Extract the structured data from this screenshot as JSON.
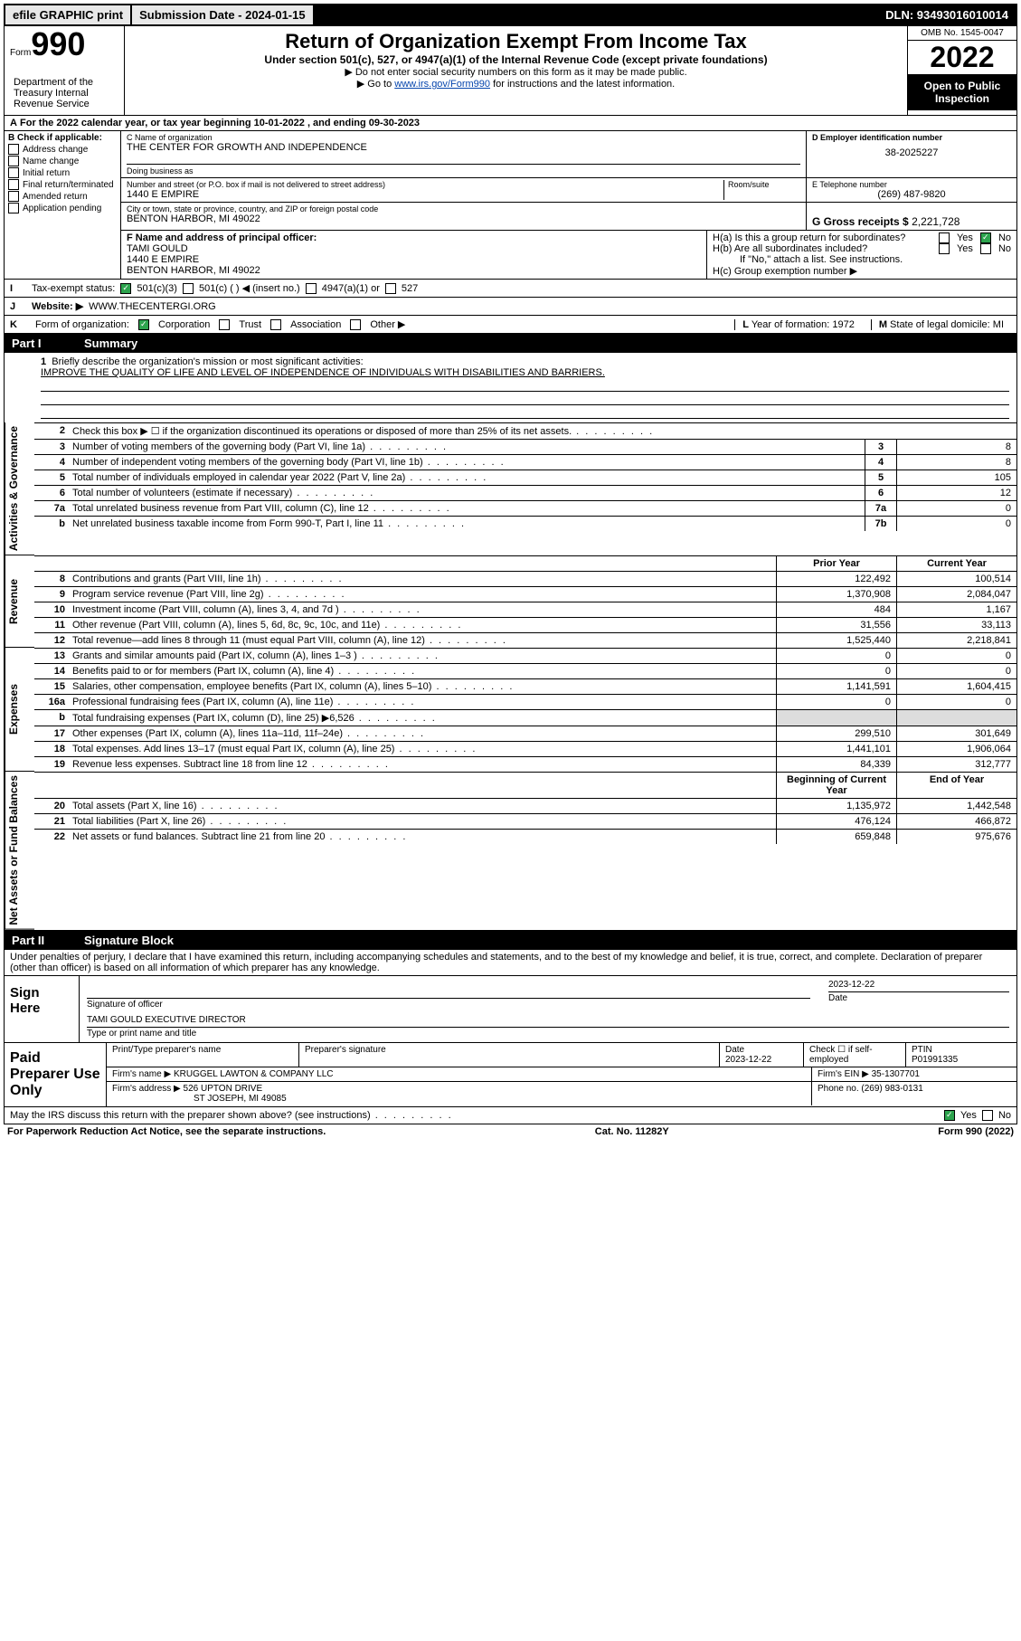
{
  "top": {
    "efile": "efile GRAPHIC print",
    "submission": "Submission Date - 2024-01-15",
    "dln": "DLN: 93493016010014"
  },
  "header": {
    "form_prefix": "Form",
    "form_number": "990",
    "title": "Return of Organization Exempt From Income Tax",
    "subtitle": "Under section 501(c), 527, or 4947(a)(1) of the Internal Revenue Code (except private foundations)",
    "note1": "▶ Do not enter social security numbers on this form as it may be made public.",
    "note2_pre": "▶ Go to ",
    "note2_link": "www.irs.gov/Form990",
    "note2_post": " for instructions and the latest information.",
    "omb": "OMB No. 1545-0047",
    "year": "2022",
    "inspection": "Open to Public Inspection",
    "dept": "Department of the Treasury Internal Revenue Service"
  },
  "period": "For the 2022 calendar year, or tax year beginning 10-01-2022   , and ending 09-30-2023",
  "b": {
    "header": "B Check if applicable:",
    "opts": [
      "Address change",
      "Name change",
      "Initial return",
      "Final return/terminated",
      "Amended return",
      "Application pending"
    ]
  },
  "c": {
    "name_label": "C Name of organization",
    "name": "THE CENTER FOR GROWTH AND INDEPENDENCE",
    "dba_label": "Doing business as",
    "street_label": "Number and street (or P.O. box if mail is not delivered to street address)",
    "suite_label": "Room/suite",
    "street": "1440 E EMPIRE",
    "city_label": "City or town, state or province, country, and ZIP or foreign postal code",
    "city": "BENTON HARBOR, MI  49022"
  },
  "d": {
    "label": "D Employer identification number",
    "ein": "38-2025227"
  },
  "e": {
    "label": "E Telephone number",
    "phone": "(269) 487-9820"
  },
  "g": {
    "label": "G Gross receipts $",
    "amount": "2,221,728"
  },
  "f": {
    "label": "F  Name and address of principal officer:",
    "name": "TAMI GOULD",
    "street": "1440 E EMPIRE",
    "city": "BENTON HARBOR, MI  49022"
  },
  "h": {
    "a": "H(a)  Is this a group return for subordinates?",
    "b": "H(b)  Are all subordinates included?",
    "note": "If \"No,\" attach a list. See instructions.",
    "c": "H(c)  Group exemption number ▶",
    "yes": "Yes",
    "no": "No"
  },
  "i": {
    "label": "I",
    "text": "Tax-exempt status:",
    "o1": "501(c)(3)",
    "o2": "501(c) (  ) ◀ (insert no.)",
    "o3": "4947(a)(1) or",
    "o4": "527"
  },
  "j": {
    "label": "J",
    "text": "Website: ▶",
    "url": "WWW.THECENTERGI.ORG"
  },
  "k": {
    "label": "K",
    "text": "Form of organization:",
    "o1": "Corporation",
    "o2": "Trust",
    "o3": "Association",
    "o4": "Other ▶"
  },
  "l": {
    "label": "L",
    "text": "Year of formation: 1972"
  },
  "m": {
    "label": "M",
    "text": "State of legal domicile: MI"
  },
  "part1": {
    "name": "Part I",
    "title": "Summary",
    "q1_label": "1",
    "q1": "Briefly describe the organization's mission or most significant activities:",
    "mission": "IMPROVE THE QUALITY OF LIFE AND LEVEL OF INDEPENDENCE OF INDIVIDUALS WITH DISABILITIES AND BARRIERS.",
    "sections": {
      "gov": "Activities & Governance",
      "rev": "Revenue",
      "exp": "Expenses",
      "net": "Net Assets or Fund Balances"
    },
    "rows_gov": [
      {
        "n": "2",
        "d": "Check this box ▶ ☐  if the organization discontinued its operations or disposed of more than 25% of its net assets."
      },
      {
        "n": "3",
        "d": "Number of voting members of the governing body (Part VI, line 1a)",
        "box": "3",
        "v": "8"
      },
      {
        "n": "4",
        "d": "Number of independent voting members of the governing body (Part VI, line 1b)",
        "box": "4",
        "v": "8"
      },
      {
        "n": "5",
        "d": "Total number of individuals employed in calendar year 2022 (Part V, line 2a)",
        "box": "5",
        "v": "105"
      },
      {
        "n": "6",
        "d": "Total number of volunteers (estimate if necessary)",
        "box": "6",
        "v": "12"
      },
      {
        "n": "7a",
        "d": "Total unrelated business revenue from Part VIII, column (C), line 12",
        "box": "7a",
        "v": "0"
      },
      {
        "n": "b",
        "d": "Net unrelated business taxable income from Form 990-T, Part I, line 11",
        "box": "7b",
        "v": "0"
      }
    ],
    "col_prior": "Prior Year",
    "col_current": "Current Year",
    "col_begin": "Beginning of Current Year",
    "col_end": "End of Year",
    "rows_rev": [
      {
        "n": "8",
        "d": "Contributions and grants (Part VIII, line 1h)",
        "p": "122,492",
        "c": "100,514"
      },
      {
        "n": "9",
        "d": "Program service revenue (Part VIII, line 2g)",
        "p": "1,370,908",
        "c": "2,084,047"
      },
      {
        "n": "10",
        "d": "Investment income (Part VIII, column (A), lines 3, 4, and 7d )",
        "p": "484",
        "c": "1,167"
      },
      {
        "n": "11",
        "d": "Other revenue (Part VIII, column (A), lines 5, 6d, 8c, 9c, 10c, and 11e)",
        "p": "31,556",
        "c": "33,113"
      },
      {
        "n": "12",
        "d": "Total revenue—add lines 8 through 11 (must equal Part VIII, column (A), line 12)",
        "p": "1,525,440",
        "c": "2,218,841"
      }
    ],
    "rows_exp": [
      {
        "n": "13",
        "d": "Grants and similar amounts paid (Part IX, column (A), lines 1–3 )",
        "p": "0",
        "c": "0"
      },
      {
        "n": "14",
        "d": "Benefits paid to or for members (Part IX, column (A), line 4)",
        "p": "0",
        "c": "0"
      },
      {
        "n": "15",
        "d": "Salaries, other compensation, employee benefits (Part IX, column (A), lines 5–10)",
        "p": "1,141,591",
        "c": "1,604,415"
      },
      {
        "n": "16a",
        "d": "Professional fundraising fees (Part IX, column (A), line 11e)",
        "p": "0",
        "c": "0"
      },
      {
        "n": "b",
        "d": "Total fundraising expenses (Part IX, column (D), line 25) ▶6,526",
        "p": "",
        "c": ""
      },
      {
        "n": "17",
        "d": "Other expenses (Part IX, column (A), lines 11a–11d, 11f–24e)",
        "p": "299,510",
        "c": "301,649"
      },
      {
        "n": "18",
        "d": "Total expenses. Add lines 13–17 (must equal Part IX, column (A), line 25)",
        "p": "1,441,101",
        "c": "1,906,064"
      },
      {
        "n": "19",
        "d": "Revenue less expenses. Subtract line 18 from line 12",
        "p": "84,339",
        "c": "312,777"
      }
    ],
    "rows_net": [
      {
        "n": "20",
        "d": "Total assets (Part X, line 16)",
        "p": "1,135,972",
        "c": "1,442,548"
      },
      {
        "n": "21",
        "d": "Total liabilities (Part X, line 26)",
        "p": "476,124",
        "c": "466,872"
      },
      {
        "n": "22",
        "d": "Net assets or fund balances. Subtract line 21 from line 20",
        "p": "659,848",
        "c": "975,676"
      }
    ]
  },
  "part2": {
    "name": "Part II",
    "title": "Signature Block",
    "declaration": "Under penalties of perjury, I declare that I have examined this return, including accompanying schedules and statements, and to the best of my knowledge and belief, it is true, correct, and complete. Declaration of preparer (other than officer) is based on all information of which preparer has any knowledge.",
    "sign_here": "Sign Here",
    "sig_officer": "Signature of officer",
    "sig_date_label": "Date",
    "sig_date": "2023-12-22",
    "officer_name": "TAMI GOULD  EXECUTIVE DIRECTOR",
    "officer_name_label": "Type or print name and title",
    "paid_label": "Paid Preparer Use Only",
    "prep_name_label": "Print/Type preparer's name",
    "prep_sig_label": "Preparer's signature",
    "prep_date_label": "Date",
    "prep_date": "2023-12-22",
    "self_emp": "Check ☐ if self-employed",
    "ptin_label": "PTIN",
    "ptin": "P01991335",
    "firm_name_label": "Firm's name    ▶",
    "firm_name": "KRUGGEL LAWTON & COMPANY LLC",
    "firm_ein_label": "Firm's EIN ▶",
    "firm_ein": "35-1307701",
    "firm_addr_label": "Firm's address ▶",
    "firm_addr1": "526 UPTON DRIVE",
    "firm_addr2": "ST JOSEPH, MI  49085",
    "firm_phone_label": "Phone no.",
    "firm_phone": "(269) 983-0131",
    "discuss": "May the IRS discuss this return with the preparer shown above? (see instructions)"
  },
  "footer": {
    "left": "For Paperwork Reduction Act Notice, see the separate instructions.",
    "mid": "Cat. No. 11282Y",
    "right": "Form 990 (2022)"
  }
}
